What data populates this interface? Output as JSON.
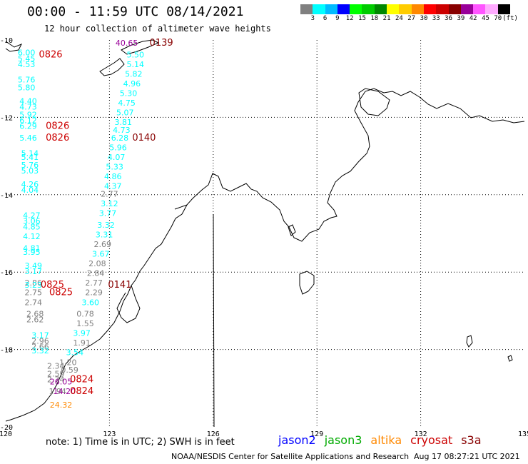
{
  "header": {
    "title": "00:00 - 11:59 UTC 08/14/2021",
    "subtitle": "12 hour collection of altimeter wave heights"
  },
  "legend": {
    "colors": [
      "#808080",
      "#00ffff",
      "#00bbff",
      "#0000ff",
      "#00ff00",
      "#00cc00",
      "#008800",
      "#ffff00",
      "#ffcc00",
      "#ff8800",
      "#ff0000",
      "#cc0000",
      "#880000",
      "#990099",
      "#ff55ff",
      "#ffaaff",
      "#000000"
    ],
    "labels": [
      "3",
      "6",
      "9",
      "12",
      "15",
      "18",
      "21",
      "24",
      "27",
      "30",
      "33",
      "36",
      "39",
      "42",
      "45",
      "70",
      "(ft)"
    ]
  },
  "axes": {
    "x_labels": [
      "120",
      "123",
      "126",
      "129",
      "132",
      "135"
    ],
    "y_labels": [
      "-10",
      "-12",
      "-14",
      "-16",
      "-18",
      "-20"
    ]
  },
  "colors": {
    "jason2": "#0000ff",
    "jason3": "#00aa00",
    "altika": "#ff8800",
    "cryosat": "#cc0000",
    "s3a": "#880000",
    "cyan_track": "#00ffff",
    "gray_track": "#808080",
    "coast": "#000000",
    "grid": "#000000"
  },
  "footer": {
    "note": "note: 1) Time is in UTC; 2) SWH is in feet",
    "satellites": [
      "jason2",
      "jason3",
      "altika",
      "cryosat",
      "s3a"
    ],
    "credit": "NOAA/NESDIS Center for Satellite Applications and Research",
    "timestamp": "Aug 17 08:27:21 UTC 2021"
  },
  "observations": [
    {
      "v": "6.00",
      "lon": 120.6,
      "lat": -10.4,
      "c": "cyan"
    },
    {
      "v": "5.45",
      "lon": 120.6,
      "lat": -10.55,
      "c": "cyan"
    },
    {
      "v": "4.53",
      "lon": 120.6,
      "lat": -10.7,
      "c": "cyan"
    },
    {
      "v": "5.76",
      "lon": 120.6,
      "lat": -11.1,
      "c": "cyan"
    },
    {
      "v": "5.80",
      "lon": 120.6,
      "lat": -11.3,
      "c": "cyan"
    },
    {
      "v": "4.40",
      "lon": 120.65,
      "lat": -11.65,
      "c": "cyan"
    },
    {
      "v": "4.73",
      "lon": 120.65,
      "lat": -11.8,
      "c": "cyan"
    },
    {
      "v": "5.92",
      "lon": 120.65,
      "lat": -12.0,
      "c": "cyan"
    },
    {
      "v": "6.12",
      "lon": 120.65,
      "lat": -12.15,
      "c": "cyan"
    },
    {
      "v": "6.29",
      "lon": 120.65,
      "lat": -12.3,
      "c": "cyan"
    },
    {
      "v": "5.46",
      "lon": 120.65,
      "lat": -12.6,
      "c": "cyan"
    },
    {
      "v": "5.14",
      "lon": 120.7,
      "lat": -13.0,
      "c": "cyan"
    },
    {
      "v": "5.41",
      "lon": 120.7,
      "lat": -13.1,
      "c": "cyan"
    },
    {
      "v": "5.76",
      "lon": 120.7,
      "lat": -13.3,
      "c": "cyan"
    },
    {
      "v": "5.03",
      "lon": 120.7,
      "lat": -13.45,
      "c": "cyan"
    },
    {
      "v": "4.26",
      "lon": 120.7,
      "lat": -13.8,
      "c": "cyan"
    },
    {
      "v": "4.04",
      "lon": 120.7,
      "lat": -13.95,
      "c": "cyan"
    },
    {
      "v": "4.27",
      "lon": 120.75,
      "lat": -14.6,
      "c": "cyan"
    },
    {
      "v": "3.06",
      "lon": 120.75,
      "lat": -14.75,
      "c": "cyan"
    },
    {
      "v": "4.85",
      "lon": 120.75,
      "lat": -14.9,
      "c": "cyan"
    },
    {
      "v": "4.12",
      "lon": 120.75,
      "lat": -15.15,
      "c": "cyan"
    },
    {
      "v": "4.81",
      "lon": 120.75,
      "lat": -15.45,
      "c": "cyan"
    },
    {
      "v": "3.95",
      "lon": 120.75,
      "lat": -15.55,
      "c": "cyan"
    },
    {
      "v": "3.49",
      "lon": 120.8,
      "lat": -15.9,
      "c": "cyan"
    },
    {
      "v": "3.17",
      "lon": 120.8,
      "lat": -16.05,
      "c": "cyan"
    },
    {
      "v": "2.86",
      "lon": 120.8,
      "lat": -16.35,
      "c": "gray"
    },
    {
      "v": "3.23",
      "lon": 120.8,
      "lat": -16.4,
      "c": "cyan"
    },
    {
      "v": "2.75",
      "lon": 120.8,
      "lat": -16.6,
      "c": "gray"
    },
    {
      "v": "2.74",
      "lon": 120.8,
      "lat": -16.85,
      "c": "gray"
    },
    {
      "v": "2.68",
      "lon": 120.85,
      "lat": -17.15,
      "c": "gray"
    },
    {
      "v": "2.62",
      "lon": 120.85,
      "lat": -17.3,
      "c": "gray"
    },
    {
      "v": "3.17",
      "lon": 121.0,
      "lat": -17.7,
      "c": "cyan"
    },
    {
      "v": "2.96",
      "lon": 121.0,
      "lat": -17.85,
      "c": "gray"
    },
    {
      "v": "2.66",
      "lon": 121.0,
      "lat": -18.0,
      "c": "gray"
    },
    {
      "v": "3.32",
      "lon": 121.0,
      "lat": -18.1,
      "c": "cyan"
    },
    {
      "v": "2.34",
      "lon": 121.45,
      "lat": -18.5,
      "c": "gray"
    },
    {
      "v": "2.59",
      "lon": 121.45,
      "lat": -18.7,
      "c": "gray"
    },
    {
      "v": "2.74",
      "lon": 121.45,
      "lat": -18.85,
      "c": "gray"
    },
    {
      "v": "1.94",
      "lon": 121.5,
      "lat": -19.15,
      "c": "gray"
    },
    {
      "v": "24.32",
      "lon": 121.6,
      "lat": -19.5,
      "c": "altika"
    },
    {
      "v": "40.65",
      "lon": 123.5,
      "lat": -10.15,
      "c": "purple"
    },
    {
      "v": "5.50",
      "lon": 123.75,
      "lat": -10.45,
      "c": "cyan"
    },
    {
      "v": "5.14",
      "lon": 123.75,
      "lat": -10.7,
      "c": "cyan"
    },
    {
      "v": "5.82",
      "lon": 123.7,
      "lat": -10.95,
      "c": "cyan"
    },
    {
      "v": "4.96",
      "lon": 123.65,
      "lat": -11.2,
      "c": "cyan"
    },
    {
      "v": "5.30",
      "lon": 123.55,
      "lat": -11.45,
      "c": "cyan"
    },
    {
      "v": "4.75",
      "lon": 123.5,
      "lat": -11.7,
      "c": "cyan"
    },
    {
      "v": "5.07",
      "lon": 123.45,
      "lat": -11.95,
      "c": "cyan"
    },
    {
      "v": "3.81",
      "lon": 123.4,
      "lat": -12.2,
      "c": "cyan"
    },
    {
      "v": "4.73",
      "lon": 123.35,
      "lat": -12.4,
      "c": "cyan"
    },
    {
      "v": "6.28",
      "lon": 123.3,
      "lat": -12.6,
      "c": "cyan"
    },
    {
      "v": "5.96",
      "lon": 123.25,
      "lat": -12.85,
      "c": "cyan"
    },
    {
      "v": "4.07",
      "lon": 123.2,
      "lat": -13.1,
      "c": "cyan"
    },
    {
      "v": "5.33",
      "lon": 123.15,
      "lat": -13.35,
      "c": "cyan"
    },
    {
      "v": "4.86",
      "lon": 123.1,
      "lat": -13.6,
      "c": "cyan"
    },
    {
      "v": "4.37",
      "lon": 123.1,
      "lat": -13.85,
      "c": "cyan"
    },
    {
      "v": "2.77",
      "lon": 123.0,
      "lat": -14.05,
      "c": "gray"
    },
    {
      "v": "3.12",
      "lon": 123.0,
      "lat": -14.3,
      "c": "cyan"
    },
    {
      "v": "3.77",
      "lon": 122.95,
      "lat": -14.55,
      "c": "cyan"
    },
    {
      "v": "3.32",
      "lon": 122.9,
      "lat": -14.85,
      "c": "cyan"
    },
    {
      "v": "3.31",
      "lon": 122.85,
      "lat": -15.1,
      "c": "cyan"
    },
    {
      "v": "2.69",
      "lon": 122.8,
      "lat": -15.35,
      "c": "gray"
    },
    {
      "v": "3.67",
      "lon": 122.75,
      "lat": -15.6,
      "c": "cyan"
    },
    {
      "v": "2.08",
      "lon": 122.65,
      "lat": -15.85,
      "c": "gray"
    },
    {
      "v": "2.84",
      "lon": 122.6,
      "lat": -16.1,
      "c": "gray"
    },
    {
      "v": "2.77",
      "lon": 122.55,
      "lat": -16.35,
      "c": "gray"
    },
    {
      "v": "2.29",
      "lon": 122.55,
      "lat": -16.6,
      "c": "gray"
    },
    {
      "v": "3.60",
      "lon": 122.45,
      "lat": -16.85,
      "c": "cyan"
    },
    {
      "v": "0.78",
      "lon": 122.3,
      "lat": -17.15,
      "c": "gray"
    },
    {
      "v": "1.55",
      "lon": 122.3,
      "lat": -17.4,
      "c": "gray"
    },
    {
      "v": "3.97",
      "lon": 122.2,
      "lat": -17.65,
      "c": "cyan"
    },
    {
      "v": "1.91",
      "lon": 122.2,
      "lat": -17.9,
      "c": "gray"
    },
    {
      "v": "3.54",
      "lon": 122.0,
      "lat": -18.15,
      "c": "cyan"
    },
    {
      "v": "1.20",
      "lon": 121.8,
      "lat": -18.4,
      "c": "gray"
    },
    {
      "v": "0.59",
      "lon": 121.85,
      "lat": -18.6,
      "c": "gray"
    },
    {
      "v": "26.05",
      "lon": 121.6,
      "lat": -18.9,
      "c": "purple"
    },
    {
      "v": "14.20",
      "lon": 121.7,
      "lat": -19.15,
      "c": "purple"
    }
  ],
  "time_labels": [
    {
      "t": "0826",
      "lon": 121.3,
      "lat": -10.45,
      "c": "red"
    },
    {
      "t": "0139",
      "lon": 124.5,
      "lat": -10.15,
      "c": "darkred"
    },
    {
      "t": "0826",
      "lon": 121.5,
      "lat": -12.3,
      "c": "red"
    },
    {
      "t": "0826",
      "lon": 121.5,
      "lat": -12.6,
      "c": "red"
    },
    {
      "t": "0140",
      "lon": 124.0,
      "lat": -12.6,
      "c": "darkred"
    },
    {
      "t": "0825",
      "lon": 121.35,
      "lat": -16.4,
      "c": "red"
    },
    {
      "t": "0825",
      "lon": 121.6,
      "lat": -16.6,
      "c": "red"
    },
    {
      "t": "0141",
      "lon": 123.3,
      "lat": -16.4,
      "c": "darkred"
    },
    {
      "t": "0824",
      "lon": 122.2,
      "lat": -18.85,
      "c": "red"
    },
    {
      "t": "0824",
      "lon": 122.2,
      "lat": -19.15,
      "c": "red"
    }
  ]
}
